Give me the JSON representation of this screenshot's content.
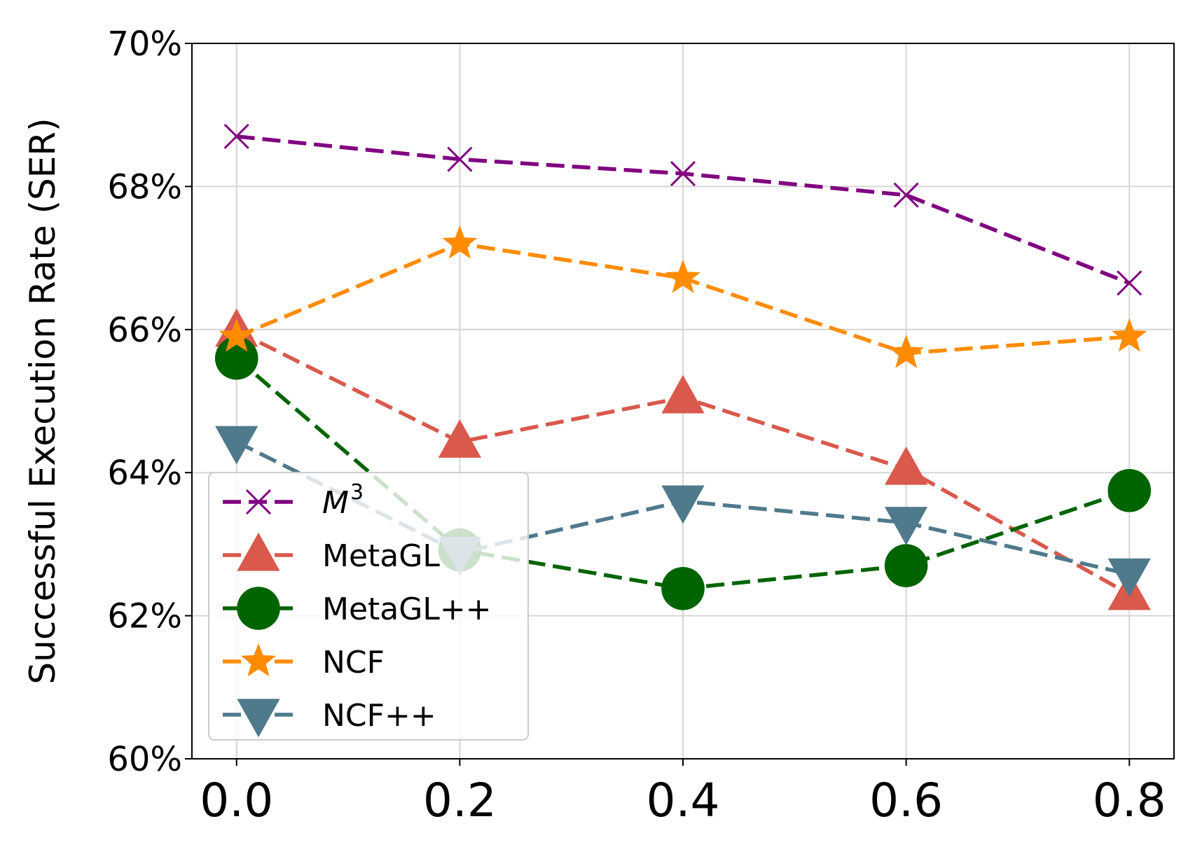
{
  "chart_data": {
    "type": "line",
    "title": "",
    "xlabel": "",
    "ylabel": "Successful Execution Rate (SER)",
    "x": [
      0.0,
      0.2,
      0.4,
      0.6,
      0.8
    ],
    "x_tick_labels": [
      "0.0",
      "0.2",
      "0.4",
      "0.6",
      "0.8"
    ],
    "xlim": [
      -0.04,
      0.84
    ],
    "ylim": [
      60,
      70
    ],
    "y_ticks": [
      60,
      62,
      64,
      66,
      68,
      70
    ],
    "y_tick_labels": [
      "60%",
      "62%",
      "64%",
      "66%",
      "68%",
      "70%"
    ],
    "grid": true,
    "legend_position": "lower-left",
    "series": [
      {
        "name": "M",
        "name_sup": "3",
        "color": "#800080",
        "marker": "x",
        "values": [
          68.7,
          68.38,
          68.18,
          67.88,
          66.65
        ]
      },
      {
        "name": "MetaGL",
        "color": "#d9594c",
        "marker": "triangle-up",
        "values": [
          65.98,
          64.43,
          65.05,
          64.05,
          62.3
        ]
      },
      {
        "name": "MetaGL++",
        "color": "#006400",
        "marker": "circle",
        "values": [
          65.6,
          62.92,
          62.38,
          62.7,
          63.75
        ]
      },
      {
        "name": "NCF",
        "color": "#ff8c00",
        "marker": "star",
        "values": [
          65.9,
          67.2,
          66.72,
          65.67,
          65.9
        ]
      },
      {
        "name": "NCF++",
        "color": "#4f7a8c",
        "marker": "triangle-down",
        "values": [
          64.43,
          62.88,
          63.6,
          63.3,
          62.58
        ]
      }
    ]
  }
}
